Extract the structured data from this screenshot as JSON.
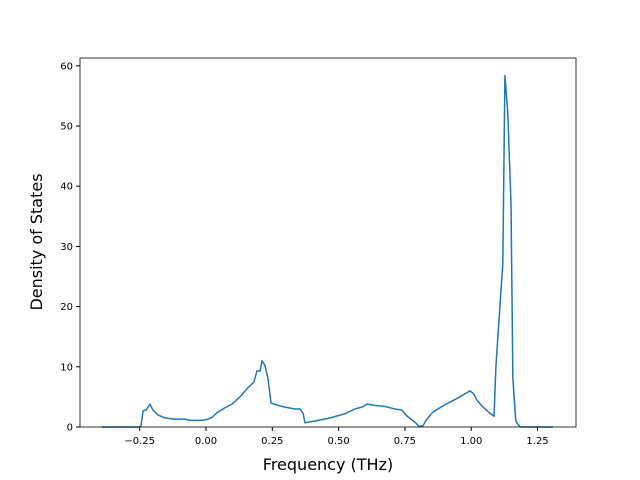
{
  "chart_data": {
    "type": "line",
    "x_label": "Frequency (THz)",
    "y_label": "Density of States",
    "x": [
      -0.392,
      -0.249,
      -0.245,
      -0.237,
      -0.226,
      -0.211,
      -0.2,
      -0.181,
      -0.155,
      -0.117,
      -0.079,
      -0.06,
      -0.023,
      0,
      0.023,
      0.045,
      0.072,
      0.098,
      0.128,
      0.158,
      0.181,
      0.192,
      0.204,
      0.211,
      0.222,
      0.234,
      0.245,
      0.271,
      0.298,
      0.335,
      0.354,
      0.366,
      0.373,
      0.411,
      0.467,
      0.524,
      0.562,
      0.588,
      0.607,
      0.637,
      0.675,
      0.712,
      0.739,
      0.758,
      0.788,
      0.803,
      0.818,
      0.833,
      0.856,
      0.901,
      0.957,
      0.976,
      0.995,
      1.01,
      1.021,
      1.04,
      1.07,
      1.086,
      1.093,
      1.108,
      1.119,
      1.127,
      1.138,
      1.15,
      1.157,
      1.168,
      1.184,
      1.308
    ],
    "series": [
      {
        "name": "DOS",
        "color": "#1f77b4",
        "values": [
          0,
          0,
          0.2,
          2.7,
          2.8,
          3.8,
          2.8,
          2.0,
          1.5,
          1.3,
          1.3,
          1.1,
          1.1,
          1.2,
          1.6,
          2.5,
          3.2,
          3.8,
          5.0,
          6.5,
          7.5,
          9.3,
          9.3,
          11.0,
          10.3,
          8.0,
          4.0,
          3.6,
          3.3,
          3.0,
          3.0,
          2.3,
          0.7,
          1.0,
          1.5,
          2.2,
          3.0,
          3.3,
          3.8,
          3.6,
          3.4,
          3.0,
          2.8,
          1.8,
          0.8,
          0.1,
          0.2,
          1.3,
          2.5,
          3.7,
          5.0,
          5.5,
          6.0,
          5.5,
          4.5,
          3.5,
          2.3,
          1.8,
          10,
          20,
          27,
          58.4,
          52,
          37,
          8,
          1,
          0,
          0
        ]
      }
    ],
    "xlim": [
      -0.475,
      1.395
    ],
    "ylim": [
      0,
      61.3
    ],
    "xticks": [
      {
        "value": -0.25,
        "label": "−0.25"
      },
      {
        "value": 0,
        "label": "0.00"
      },
      0.25,
      {
        "value": 0.5,
        "label": "0.50"
      },
      0.75,
      {
        "value": 1,
        "label": "1.00"
      },
      1.25
    ],
    "yticks": [
      0,
      10,
      20,
      30,
      40,
      50,
      60
    ]
  }
}
